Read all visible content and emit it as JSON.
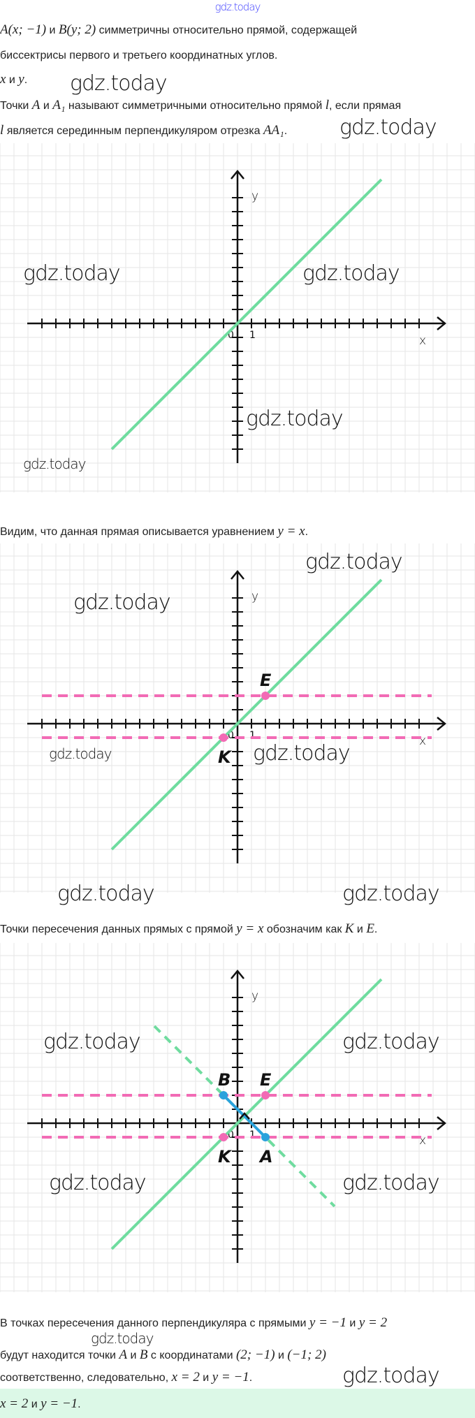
{
  "watermark": "gdz.today",
  "colors": {
    "line_main": "#6fdc9f",
    "dashed_horizontal": "#f26bb5",
    "segment": "#2aa2dc",
    "axis": "#111111",
    "grid": "#e6e6e6",
    "answer_bg": "#dcf8e7",
    "watermark_top": "#3b3bff"
  },
  "text": {
    "l1": [
      {
        "m": "A(x; −1)"
      },
      {
        "t": " и "
      },
      {
        "m": "B(y; 2)"
      },
      {
        "t": " симметричны относительно прямой, содержащей"
      }
    ],
    "l2": [
      {
        "t": "биссектрисы первого и третьего координатных углов."
      }
    ],
    "l3": [
      {
        "m": "x"
      },
      {
        "t": " и "
      },
      {
        "m": "y"
      },
      {
        "t": "."
      }
    ],
    "l4": [
      {
        "t": "Точки "
      },
      {
        "m": "A"
      },
      {
        "t": " и "
      },
      {
        "m": "A₁"
      },
      {
        "t": " называют симметричными относительно прямой "
      },
      {
        "m": "l"
      },
      {
        "t": ", если прямая"
      }
    ],
    "l5": [
      {
        "m": "l"
      },
      {
        "t": " является серединным перпендикуляром отрезка "
      },
      {
        "m": "AA₁"
      },
      {
        "t": "."
      }
    ],
    "l6": [
      {
        "t": "Видим, что данная прямая описывается уравнением "
      },
      {
        "m": "y = x"
      },
      {
        "t": "."
      }
    ],
    "l7": [
      {
        "t": "Точки пересечения данных прямых с прямой "
      },
      {
        "m": "y = x"
      },
      {
        "t": " обозначим как "
      },
      {
        "m": "K"
      },
      {
        "t": " и "
      },
      {
        "m": "E"
      },
      {
        "t": "."
      }
    ],
    "l8": [
      {
        "t": "В точках пересечения данного перпендикуляра с прямыми "
      },
      {
        "m": "y = −1"
      },
      {
        "t": " и "
      },
      {
        "m": "y = 2"
      }
    ],
    "l9": [
      {
        "t": "будут находится точки "
      },
      {
        "m": "A"
      },
      {
        "t": " и "
      },
      {
        "m": "B"
      },
      {
        "t": " с координатами "
      },
      {
        "m": "(2; −1)"
      },
      {
        "t": " и "
      },
      {
        "m": "(−1; 2)"
      }
    ],
    "l10": [
      {
        "t": "соответственно, следовательно, "
      },
      {
        "m": "x = 2"
      },
      {
        "t": " и "
      },
      {
        "m": "y = −1"
      },
      {
        "t": "."
      }
    ],
    "answer": [
      {
        "m": "x = 2"
      },
      {
        "t": " и "
      },
      {
        "m": "y = −1"
      },
      {
        "t": "."
      }
    ]
  },
  "axis_labels": {
    "x": "x",
    "y": "y",
    "origin": "0",
    "unit": "1"
  },
  "graphs": [
    {
      "x_ticks": [
        -14,
        13
      ],
      "y_ticks": [
        -9,
        9
      ],
      "lines": [
        {
          "kind": "solid",
          "color": "line_main",
          "from": [
            -9,
            -9
          ],
          "to": [
            10.3,
            10.3
          ]
        }
      ],
      "points": [],
      "labels": []
    },
    {
      "x_ticks": [
        -14,
        13
      ],
      "y_ticks": [
        -9,
        9
      ],
      "lines": [
        {
          "kind": "dashed",
          "color": "dashed_horizontal",
          "from": [
            -14,
            2
          ],
          "to": [
            13.9,
            2
          ]
        },
        {
          "kind": "dashed",
          "color": "dashed_horizontal",
          "from": [
            -14,
            -1
          ],
          "to": [
            13.9,
            -1
          ]
        },
        {
          "kind": "solid",
          "color": "line_main",
          "from": [
            -9,
            -9
          ],
          "to": [
            10.3,
            10.3
          ]
        }
      ],
      "points": [
        {
          "name": "E",
          "at": [
            2,
            2
          ],
          "color": "dashed_horizontal"
        },
        {
          "name": "K",
          "at": [
            -1,
            -1
          ],
          "color": "dashed_horizontal"
        }
      ],
      "labels": [
        {
          "text": "E",
          "at": [
            2,
            2
          ],
          "pos": "above"
        },
        {
          "text": "K",
          "at": [
            -1,
            -1
          ],
          "pos": "below"
        }
      ]
    },
    {
      "x_ticks": [
        -14,
        13
      ],
      "y_ticks": [
        -9,
        9
      ],
      "lines": [
        {
          "kind": "dashed",
          "color": "dashed_horizontal",
          "from": [
            -14,
            2
          ],
          "to": [
            13.9,
            2
          ]
        },
        {
          "kind": "dashed",
          "color": "dashed_horizontal",
          "from": [
            -14,
            -1
          ],
          "to": [
            13.9,
            -1
          ]
        },
        {
          "kind": "solid",
          "color": "line_main",
          "from": [
            -9,
            -9
          ],
          "to": [
            10.3,
            10.3
          ]
        },
        {
          "kind": "dashed",
          "color": "line_main",
          "from": [
            -5.95,
            6.95
          ],
          "to": [
            6.95,
            -5.95
          ]
        },
        {
          "kind": "solid",
          "color": "segment",
          "from": [
            -1,
            2
          ],
          "to": [
            2,
            -1
          ]
        }
      ],
      "points": [
        {
          "name": "E",
          "at": [
            2,
            2
          ],
          "color": "dashed_horizontal"
        },
        {
          "name": "K",
          "at": [
            -1,
            -1
          ],
          "color": "dashed_horizontal"
        },
        {
          "name": "B",
          "at": [
            -1,
            2
          ],
          "color": "segment"
        },
        {
          "name": "A",
          "at": [
            2,
            -1
          ],
          "color": "segment"
        }
      ],
      "labels": [
        {
          "text": "B",
          "at": [
            -1,
            2
          ],
          "pos": "above"
        },
        {
          "text": "E",
          "at": [
            2,
            2
          ],
          "pos": "above"
        },
        {
          "text": "K",
          "at": [
            -1,
            -1
          ],
          "pos": "below"
        },
        {
          "text": "A",
          "at": [
            2,
            -1
          ],
          "pos": "below"
        }
      ],
      "right_angle_at": [
        0.5,
        0.5
      ]
    }
  ]
}
